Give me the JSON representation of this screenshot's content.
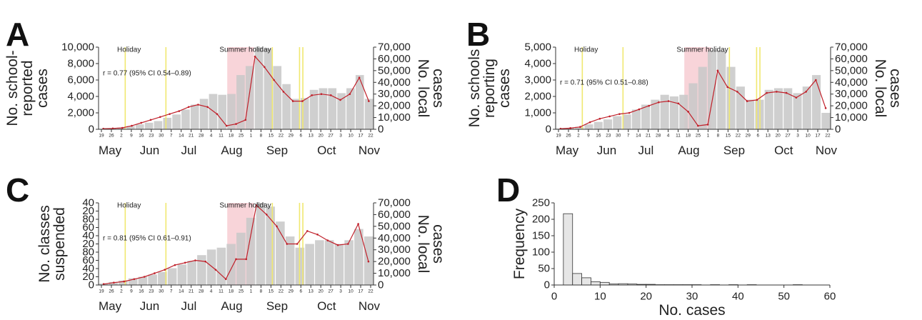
{
  "chart_data": [
    {
      "panel": "A",
      "type": "bar",
      "secondary_type": "line",
      "ylabel": "No. school-reported cases",
      "ylabel_lines": [
        "No. school-",
        "reported",
        "cases"
      ],
      "y2label": "No. local cases",
      "y2label_lines": [
        "No. local",
        "cases"
      ],
      "ylim": [
        0,
        10000
      ],
      "yticks": [
        "0",
        "2,000",
        "4,000",
        "6,000",
        "8,000",
        "10,000"
      ],
      "y2lim": [
        0,
        70000
      ],
      "y2ticks": [
        "0",
        "10,000",
        "20,000",
        "30,000",
        "40,000",
        "50,000",
        "60,000",
        "70,000"
      ],
      "annotation": "r = 0.77 (95% CI 0.54–0.89)",
      "bars": [
        60,
        100,
        200,
        400,
        600,
        800,
        1000,
        1400,
        1800,
        2400,
        3000,
        3700,
        4300,
        4200,
        4300,
        6600,
        7700,
        10000,
        9800,
        7700,
        5500,
        3700,
        3800,
        4800,
        5000,
        5000,
        4400,
        5000,
        6600,
        3700
      ],
      "line": [
        500,
        700,
        1200,
        3000,
        5500,
        8000,
        10500,
        13000,
        15500,
        19000,
        21000,
        19000,
        13000,
        3000,
        4500,
        8000,
        62000,
        53000,
        42000,
        32000,
        24000,
        24000,
        29000,
        30000,
        29000,
        25000,
        30000,
        44000,
        24000
      ]
    },
    {
      "panel": "B",
      "type": "bar",
      "secondary_type": "line",
      "ylabel": "No. schools reporting cases",
      "ylabel_lines": [
        "No. schools",
        "reporting",
        "cases"
      ],
      "y2label": "No. local cases",
      "y2label_lines": [
        "No. local",
        "cases"
      ],
      "ylim": [
        0,
        5000
      ],
      "yticks": [
        "0",
        "1,000",
        "2,000",
        "3,000",
        "4,000",
        "5,000"
      ],
      "y2lim": [
        0,
        70000
      ],
      "y2ticks": [
        "0",
        "10,000",
        "20,000",
        "30,000",
        "40,000",
        "50,000",
        "60,000",
        "70,000"
      ],
      "annotation": "r = 0.71 (95% CI 0.51–0.88)",
      "bars": [
        50,
        80,
        150,
        300,
        450,
        600,
        800,
        900,
        1200,
        1500,
        1800,
        2100,
        2000,
        2100,
        2800,
        3800,
        4800,
        4800,
        3800,
        2600,
        1800,
        1800,
        2400,
        2500,
        2500,
        2200,
        2600,
        3300,
        1000
      ],
      "line": [
        500,
        1000,
        2000,
        6000,
        9000,
        11000,
        13000,
        14000,
        17000,
        20000,
        23000,
        24000,
        22000,
        15000,
        3000,
        4000,
        50000,
        36000,
        32000,
        24000,
        25000,
        31000,
        32000,
        31000,
        27000,
        32000,
        42000,
        18000
      ]
    },
    {
      "panel": "C",
      "type": "bar",
      "secondary_type": "line",
      "ylabel": "No. classes suspended",
      "ylabel_lines": [
        "No. classes",
        "suspended"
      ],
      "y2label": "No. local cases",
      "y2label_lines": [
        "No. local",
        "cases"
      ],
      "yticks": [
        "0",
        "20",
        "40",
        "60",
        "80",
        "100",
        "120",
        "140",
        "160",
        "180"
      ],
      "tick_labels_shown": [
        "0",
        "20",
        "40",
        "60",
        "80",
        "20",
        "40",
        "60",
        "80",
        "20",
        "40"
      ],
      "ylim": [
        0,
        220
      ],
      "y2lim": [
        0,
        70000
      ],
      "y2ticks": [
        "0",
        "10,000",
        "20,000",
        "30,000",
        "40,000",
        "50,000",
        "60,000",
        "70,000"
      ],
      "annotation": "r = 0.81 (95% CI 0.61–0.91)",
      "bars": [
        4,
        8,
        12,
        18,
        22,
        28,
        35,
        45,
        55,
        65,
        80,
        95,
        100,
        110,
        140,
        180,
        220,
        210,
        170,
        130,
        100,
        110,
        120,
        120,
        110,
        120,
        150,
        130
      ],
      "line": [
        800,
        2000,
        3000,
        5000,
        7000,
        10000,
        13000,
        17000,
        19000,
        21000,
        20000,
        13000,
        5000,
        22000,
        22000,
        68000,
        60000,
        50000,
        35000,
        35000,
        46000,
        43000,
        38000,
        34000,
        35000,
        52000,
        20000
      ]
    },
    {
      "panel": "D",
      "type": "bar",
      "xlabel": "No. cases",
      "ylabel": "Frequency",
      "xlim": [
        0,
        60
      ],
      "xticks": [
        "0",
        "10",
        "20",
        "30",
        "40",
        "50",
        "60"
      ],
      "ylim": [
        0,
        250
      ],
      "yticks": [
        "0",
        "50",
        "100",
        "150",
        "200",
        "250"
      ],
      "bins": [
        {
          "x0": 2,
          "x1": 4,
          "count": 217
        },
        {
          "x0": 4,
          "x1": 6,
          "count": 35
        },
        {
          "x0": 6,
          "x1": 8,
          "count": 22
        },
        {
          "x0": 8,
          "x1": 10,
          "count": 10
        },
        {
          "x0": 10,
          "x1": 12,
          "count": 8
        },
        {
          "x0": 12,
          "x1": 14,
          "count": 3
        },
        {
          "x0": 14,
          "x1": 16,
          "count": 4
        },
        {
          "x0": 16,
          "x1": 18,
          "count": 3
        },
        {
          "x0": 18,
          "x1": 20,
          "count": 2
        },
        {
          "x0": 20,
          "x1": 22,
          "count": 2
        },
        {
          "x0": 22,
          "x1": 24,
          "count": 1
        },
        {
          "x0": 24,
          "x1": 26,
          "count": 1
        },
        {
          "x0": 26,
          "x1": 28,
          "count": 1
        },
        {
          "x0": 28,
          "x1": 30,
          "count": 1
        },
        {
          "x0": 30,
          "x1": 32,
          "count": 1
        },
        {
          "x0": 34,
          "x1": 36,
          "count": 1
        },
        {
          "x0": 38,
          "x1": 40,
          "count": 1
        },
        {
          "x0": 42,
          "x1": 44,
          "count": 1
        },
        {
          "x0": 52,
          "x1": 54,
          "count": 1
        }
      ]
    }
  ],
  "shared": {
    "panel_labels": [
      "A",
      "B",
      "C",
      "D"
    ],
    "months": [
      "May",
      "Jun",
      "Jul",
      "Aug",
      "Sep",
      "Oct",
      "Nov"
    ],
    "days": [
      "19",
      "26",
      "2",
      "9",
      "16",
      "23",
      "30",
      "7",
      "14",
      "21",
      "28",
      "4",
      "11",
      "18",
      "25",
      "1",
      "8",
      "15",
      "22",
      "29",
      "6",
      "13",
      "20",
      "27",
      "3",
      "10",
      "17",
      "22"
    ],
    "holiday_label": "Holiday",
    "summer_holiday_label": "Summer holiday",
    "colors": {
      "bar": "#c8c8c8",
      "line": "#c0202a",
      "holiday_line": "#f0e870",
      "summer_shade": "#f6c9cf",
      "hist_bar": "#e6e6e6"
    }
  }
}
